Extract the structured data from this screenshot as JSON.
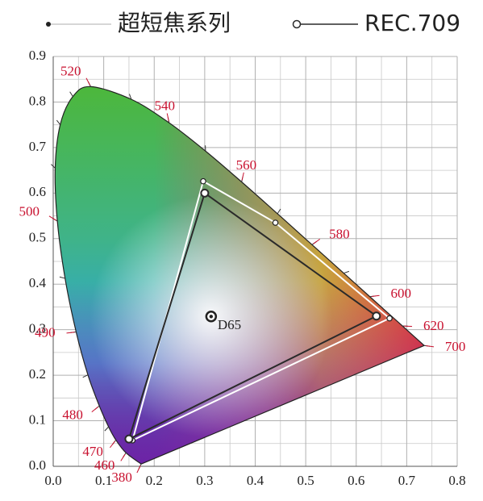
{
  "chart_data": {
    "type": "chromaticity",
    "xlim": [
      0,
      0.8
    ],
    "ylim": [
      0,
      0.9
    ],
    "xticks": [
      {
        "value": 0,
        "label": "0.0"
      },
      0.1,
      0.2,
      0.3,
      0.4,
      0.5,
      0.6,
      0.7,
      0.8
    ],
    "yticks": [
      {
        "value": 0,
        "label": "0.0"
      },
      0.1,
      0.2,
      0.3,
      0.4,
      0.5,
      0.6,
      0.7,
      0.8,
      0.9
    ],
    "grid": true,
    "legend": "top",
    "locus": {
      "color": "#c8102e",
      "wavelengths": [
        380,
        460,
        470,
        null,
        480,
        null,
        490,
        null,
        500,
        null,
        null,
        null,
        520,
        null,
        540,
        null,
        560,
        null,
        580,
        null,
        600,
        620,
        700
      ],
      "x": [
        0.1741,
        0.144,
        0.1241,
        0.1096,
        0.0913,
        0.0687,
        0.0454,
        0.0235,
        0.0082,
        0.0039,
        0.0139,
        0.0389,
        0.0743,
        0.1547,
        0.2296,
        0.3016,
        0.3731,
        0.4441,
        0.5125,
        0.5752,
        0.627,
        0.6915,
        0.7347
      ],
      "y": [
        0.005,
        0.0297,
        0.0578,
        0.0868,
        0.1327,
        0.2007,
        0.295,
        0.4127,
        0.5384,
        0.6548,
        0.7502,
        0.812,
        0.8338,
        0.8059,
        0.7543,
        0.6923,
        0.6245,
        0.5547,
        0.4866,
        0.4242,
        0.3725,
        0.3083,
        0.2653
      ]
    },
    "white_point": {
      "label": "D65",
      "x": 0.3127,
      "y": 0.329
    },
    "series": [
      {
        "name": "超短焦系列",
        "color": "#ffffff",
        "marker": "dot",
        "x": [
          0.297,
          0.44,
          0.666,
          0.157
        ],
        "y": [
          0.626,
          0.535,
          0.325,
          0.057
        ]
      },
      {
        "name": "REC.709",
        "color": "#2a2a2a",
        "marker": "circle",
        "x": [
          0.64,
          0.3,
          0.15
        ],
        "y": [
          0.33,
          0.6,
          0.06
        ]
      }
    ]
  }
}
